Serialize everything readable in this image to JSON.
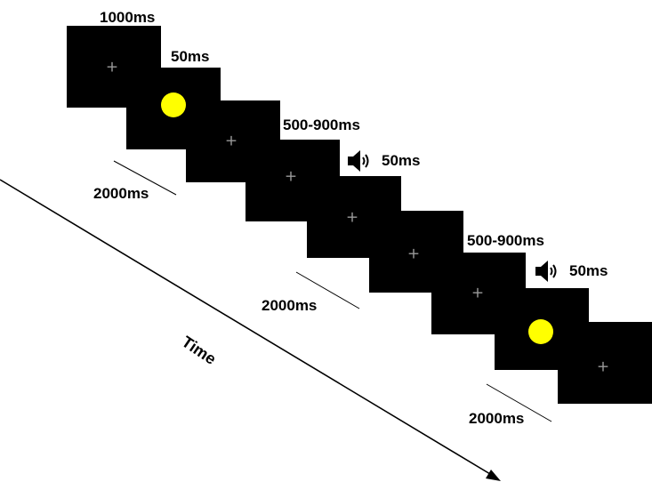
{
  "labels": {
    "t1": "1000ms",
    "t2": "50ms",
    "t3": "500-900ms",
    "t4": "50ms",
    "t5": "500-900ms",
    "t6": "50ms",
    "iti1": "2000ms",
    "iti2": "2000ms",
    "iti3": "2000ms"
  },
  "time_axis_label": "Time",
  "colors": {
    "panel": "#000000",
    "fixation": "#9a9a9a",
    "visual_stimulus": "#ffff00"
  },
  "icons": [
    "speaker-icon",
    "speaker-icon"
  ],
  "fixation_symbol": "+"
}
